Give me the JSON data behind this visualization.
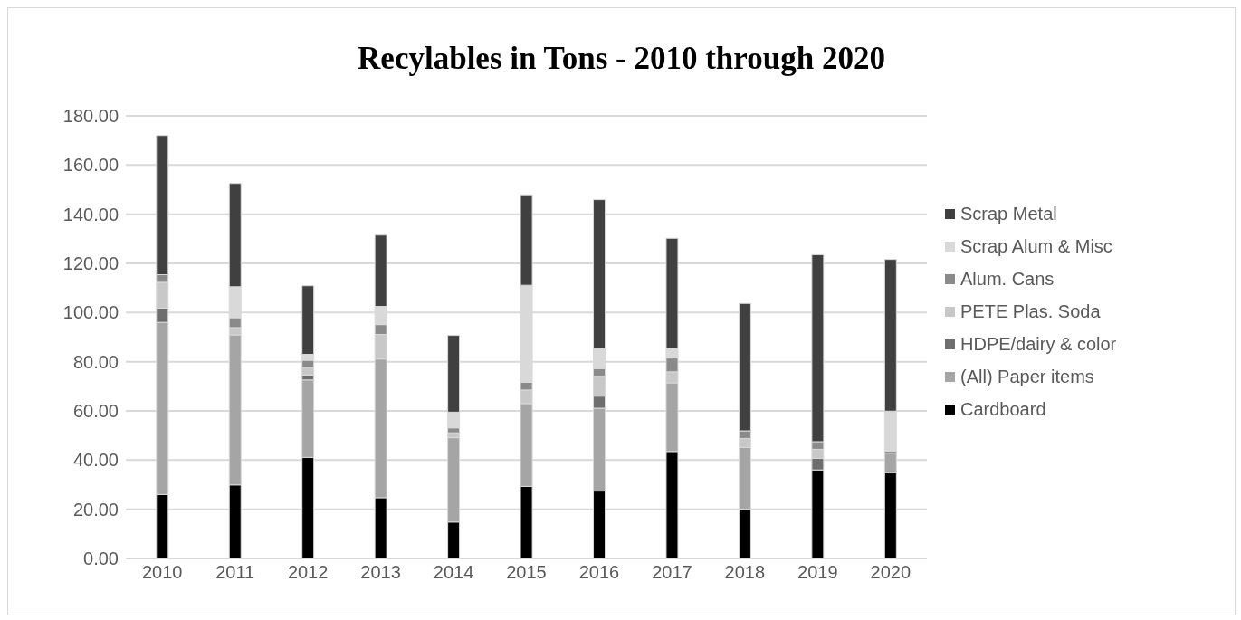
{
  "chart_data": {
    "type": "bar",
    "title": "Recylables in Tons - 2010 through 2020",
    "stacked": true,
    "categories": [
      "2010",
      "2011",
      "2012",
      "2013",
      "2014",
      "2015",
      "2016",
      "2017",
      "2018",
      "2019",
      "2020"
    ],
    "series": [
      {
        "name": "Cardboard",
        "color": "#000000",
        "values": [
          26,
          29.9,
          41.1,
          24.7,
          14.8,
          29.3,
          27.4,
          43.5,
          20,
          36,
          34.9
        ]
      },
      {
        "name": "(All) Paper items",
        "color": "#a5a5a5",
        "values": [
          70,
          61,
          31.5,
          56.4,
          34.3,
          33.7,
          33.7,
          27.9,
          25.1,
          0,
          7.9
        ]
      },
      {
        "name": "HDPE/dairy & color",
        "color": "#6e6e6e",
        "values": [
          5.8,
          0,
          2,
          0,
          0,
          0,
          4.9,
          0,
          0,
          4.7,
          0
        ]
      },
      {
        "name": "PETE Plas. Soda",
        "color": "#c8c8c8",
        "values": [
          10.5,
          3,
          3,
          10,
          2,
          5.5,
          8.1,
          4.5,
          3.7,
          3.7,
          0
        ]
      },
      {
        "name": "Alum. Cans",
        "color": "#8a8a8a",
        "values": [
          3.1,
          4,
          3,
          4,
          2,
          3.1,
          3.1,
          5.6,
          3.1,
          3.1,
          0.8
        ]
      },
      {
        "name": "Scrap Alum & Misc",
        "color": "#d9d9d9",
        "values": [
          0,
          12.6,
          2.4,
          7.4,
          6.4,
          39.5,
          8,
          3.7,
          0,
          0,
          16.3
        ]
      },
      {
        "name": "Scrap Metal",
        "color": "#404040",
        "values": [
          56.6,
          42,
          27.9,
          29,
          31.2,
          36.8,
          60.7,
          45,
          51.8,
          76,
          61.7
        ]
      }
    ],
    "ylim": [
      0,
      180
    ],
    "yticks": [
      {
        "value": 0,
        "label": "0.00"
      },
      {
        "value": 20,
        "label": "20.00"
      },
      {
        "value": 40,
        "label": "40.00"
      },
      {
        "value": 60,
        "label": "60.00"
      },
      {
        "value": 80,
        "label": "80.00"
      },
      {
        "value": 100,
        "label": "100.00"
      },
      {
        "value": 120,
        "label": "120.00"
      },
      {
        "value": 140,
        "label": "140.00"
      },
      {
        "value": 160,
        "label": "160.00"
      },
      {
        "value": 180,
        "label": "180.00"
      }
    ],
    "grid": "y",
    "legend": "right"
  }
}
